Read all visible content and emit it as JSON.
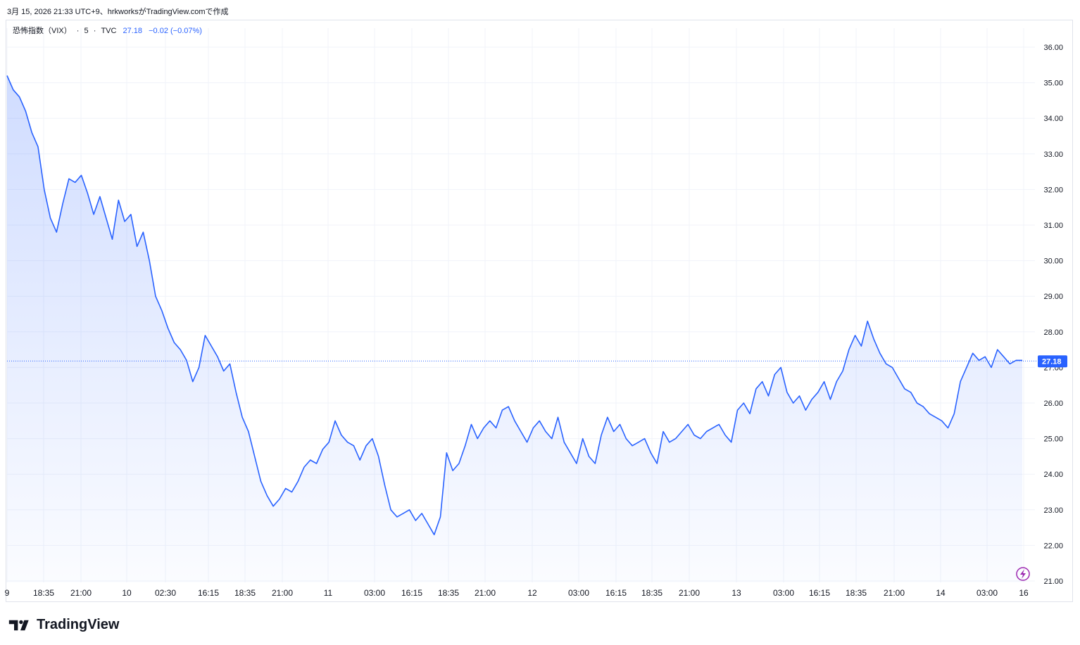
{
  "caption": "3月 15, 2026 21:33 UTC+9、hrkworksがTradingView.comで作成",
  "legend": {
    "symbol": "恐怖指数（VIX）",
    "interval": "5",
    "exchange": "TVC",
    "last": "27.18",
    "change": "−0.02 (−0.07%)"
  },
  "brand": {
    "name": "TradingView"
  },
  "colors": {
    "line": "#2962ff",
    "price_tag": "#2962ff",
    "grid": "#f0f3fa",
    "axis_text": "#131722"
  },
  "icons": {
    "tv_logo": "tradingview-logo-icon",
    "lightning": "lightning-icon"
  },
  "chart_data": {
    "type": "area",
    "yaxis_ticks": [
      "36.00",
      "35.00",
      "34.00",
      "33.00",
      "32.00",
      "31.00",
      "30.00",
      "29.00",
      "28.00",
      "27.00",
      "26.00",
      "25.00",
      "24.00",
      "23.00",
      "22.00",
      "21.00"
    ],
    "ylim": [
      21,
      36
    ],
    "xaxis_ticks": [
      "9",
      "18:35",
      "21:00",
      "10",
      "02:30",
      "16:15",
      "18:35",
      "21:00",
      "11",
      "03:00",
      "16:15",
      "18:35",
      "21:00",
      "12",
      "03:00",
      "16:15",
      "18:35",
      "21:00",
      "13",
      "03:00",
      "16:15",
      "18:35",
      "21:00",
      "14",
      "03:00",
      "16"
    ],
    "last_price_label": "27.18",
    "last_price": 27.18,
    "series": [
      {
        "values": [
          35.2,
          34.8,
          34.6,
          34.2,
          33.6,
          33.2,
          32.0,
          31.2,
          30.8,
          31.6,
          32.3,
          32.2,
          32.4,
          31.9,
          31.3,
          31.8,
          31.2,
          30.6,
          31.7,
          31.1,
          31.3,
          30.4,
          30.8,
          30.0,
          29.0,
          28.6,
          28.1,
          27.7,
          27.5,
          27.2,
          26.6,
          27.0,
          27.9,
          27.6,
          27.3,
          26.9,
          27.1,
          26.3,
          25.6,
          25.2,
          24.5,
          23.8,
          23.4,
          23.1,
          23.3,
          23.6,
          23.5,
          23.8,
          24.2,
          24.4,
          24.3,
          24.7,
          24.9,
          25.5,
          25.1,
          24.9,
          24.8,
          24.4,
          24.8,
          25.0,
          24.5,
          23.7,
          23.0,
          22.8,
          22.9,
          23.0,
          22.7,
          22.9,
          22.6,
          22.3,
          22.8,
          24.6,
          24.1,
          24.3,
          24.8,
          25.4,
          25.0,
          25.3,
          25.5,
          25.3,
          25.8,
          25.9,
          25.5,
          25.2,
          24.9,
          25.3,
          25.5,
          25.2,
          25.0,
          25.6,
          24.9,
          24.6,
          24.3,
          25.0,
          24.5,
          24.3,
          25.1,
          25.6,
          25.2,
          25.4,
          25.0,
          24.8,
          24.9,
          25.0,
          24.6,
          24.3,
          25.2,
          24.9,
          25.0,
          25.2,
          25.4,
          25.1,
          25.0,
          25.2,
          25.3,
          25.4,
          25.1,
          24.9,
          25.8,
          26.0,
          25.7,
          26.4,
          26.6,
          26.2,
          26.8,
          27.0,
          26.3,
          26.0,
          26.2,
          25.8,
          26.1,
          26.3,
          26.6,
          26.1,
          26.6,
          26.9,
          27.5,
          27.9,
          27.6,
          28.3,
          27.8,
          27.4,
          27.1,
          27.0,
          26.7,
          26.4,
          26.3,
          26.0,
          25.9,
          25.7,
          25.6,
          25.5,
          25.3,
          25.7,
          26.6,
          27.0,
          27.4,
          27.2,
          27.3,
          27.0,
          27.5,
          27.3,
          27.1,
          27.2,
          27.2
        ]
      }
    ]
  }
}
